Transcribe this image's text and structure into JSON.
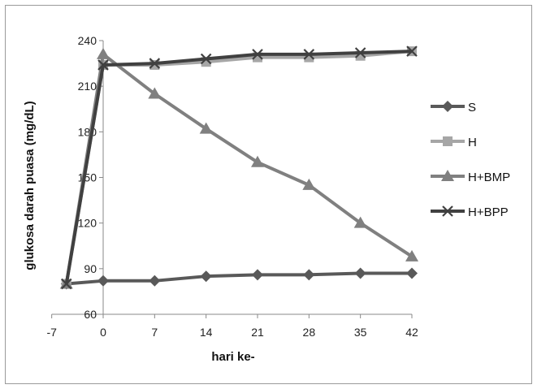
{
  "chart_data": {
    "type": "line",
    "title": "",
    "xlabel": "hari ke-",
    "ylabel": "glukosa darah puasa (mg/dL)",
    "x": [
      -5,
      0,
      7,
      14,
      21,
      28,
      35,
      42
    ],
    "xticks": [
      -7,
      0,
      7,
      14,
      21,
      28,
      35,
      42
    ],
    "yticks": [
      60,
      90,
      120,
      150,
      180,
      210,
      240
    ],
    "xlim": [
      -7,
      42
    ],
    "ylim": [
      60,
      240
    ],
    "grid": false,
    "legend_position": "right",
    "series": [
      {
        "name": "S",
        "marker": "diamond",
        "color": "#595959",
        "values": [
          80,
          82,
          82,
          85,
          86,
          86,
          87,
          87
        ]
      },
      {
        "name": "H",
        "marker": "square",
        "color": "#a6a6a6",
        "values": [
          80,
          224,
          224,
          226,
          229,
          229,
          230,
          233
        ]
      },
      {
        "name": "H+BMP",
        "marker": "triangle",
        "color": "#808080",
        "values": [
          80,
          231,
          205,
          182,
          160,
          145,
          120,
          98
        ]
      },
      {
        "name": "H+BPP",
        "marker": "x",
        "color": "#404040",
        "values": [
          80,
          224,
          225,
          228,
          231,
          231,
          232,
          233
        ]
      }
    ]
  }
}
